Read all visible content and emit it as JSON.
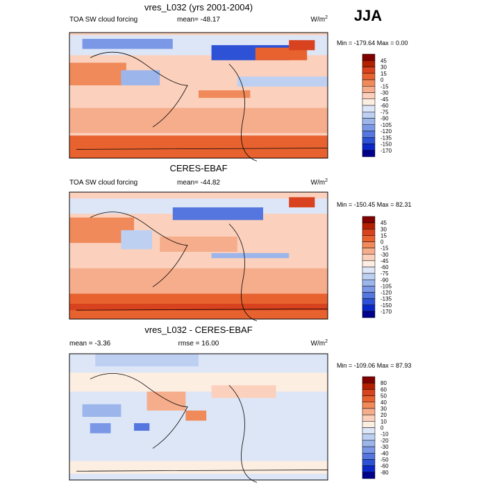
{
  "season": "JJA",
  "panels": [
    {
      "title": "vres_L032 (yrs 2001-2004)",
      "left": "TOA SW cloud forcing",
      "center": "mean= -48.17",
      "unit": {
        "base": "W/m",
        "sup": "2"
      },
      "minmax": "Min = -179.64 Max =   0.00",
      "levels": [
        45,
        30,
        15,
        0,
        -15,
        -30,
        -45,
        -60,
        -75,
        -90,
        -105,
        -120,
        -135,
        -150,
        -170
      ],
      "colors": [
        "#800000",
        "#b22000",
        "#d8421e",
        "#e8622f",
        "#f08a5a",
        "#f6ad8c",
        "#fbd0bc",
        "#fdeee2",
        "#dde6f7",
        "#bed0f2",
        "#9cb6ec",
        "#7a98e6",
        "#5576de",
        "#2d52d6",
        "#0a28c8",
        "#00008b"
      ]
    },
    {
      "title": "CERES-EBAF",
      "left": "TOA SW cloud forcing",
      "center": "mean= -44.82",
      "unit": {
        "base": "W/m",
        "sup": "2"
      },
      "minmax": "Min = -150.45 Max =  82.31",
      "levels": [
        45,
        30,
        15,
        0,
        -15,
        -30,
        -45,
        -60,
        -75,
        -90,
        -105,
        -120,
        -135,
        -150,
        -170
      ],
      "colors": [
        "#800000",
        "#b22000",
        "#d8421e",
        "#e8622f",
        "#f08a5a",
        "#f6ad8c",
        "#fbd0bc",
        "#fdeee2",
        "#dde6f7",
        "#bed0f2",
        "#9cb6ec",
        "#7a98e6",
        "#5576de",
        "#2d52d6",
        "#0a28c8",
        "#00008b"
      ]
    },
    {
      "title": "vres_L032 - CERES-EBAF",
      "left": "mean =  -3.36",
      "center": "rmse =  16.00",
      "unit": {
        "base": "W/m",
        "sup": "2"
      },
      "minmax": "Min = -109.06 Max =  87.93",
      "levels": [
        80,
        60,
        50,
        40,
        30,
        20,
        10,
        0,
        -10,
        -20,
        -30,
        -40,
        -50,
        -60,
        -80
      ],
      "colors": [
        "#800000",
        "#b22000",
        "#d8421e",
        "#e8622f",
        "#f08a5a",
        "#f6ad8c",
        "#fbd0bc",
        "#fdeee2",
        "#dde6f7",
        "#bed0f2",
        "#9cb6ec",
        "#7a98e6",
        "#5576de",
        "#2d52d6",
        "#0a28c8",
        "#00008b"
      ]
    }
  ]
}
